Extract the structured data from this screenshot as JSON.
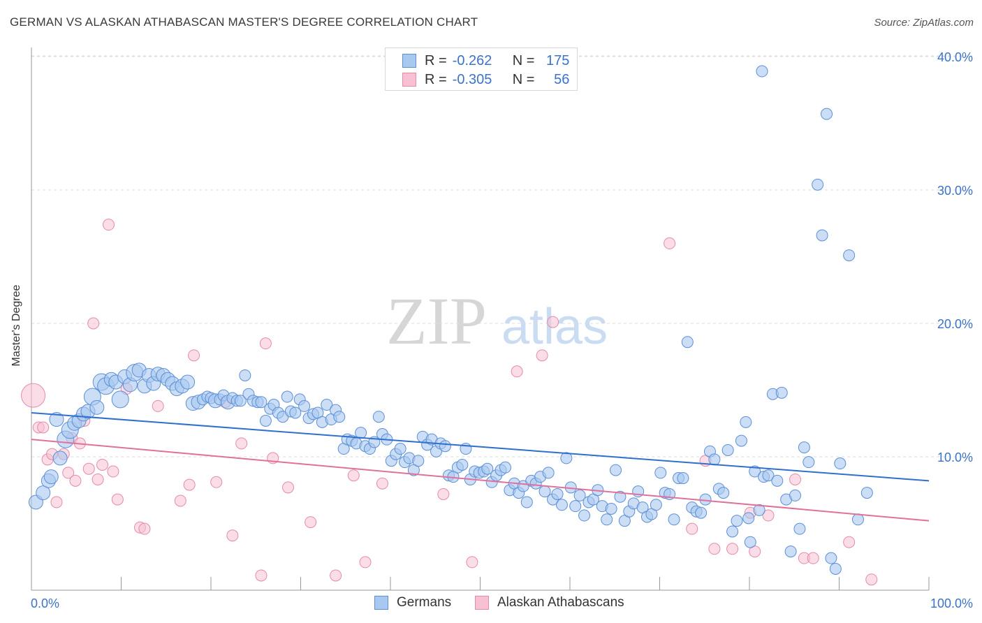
{
  "title": "GERMAN VS ALASKAN ATHABASCAN MASTER'S DEGREE CORRELATION CHART",
  "source": "Source: ZipAtlas.com",
  "watermark": {
    "zip": "ZIP",
    "atlas": "atlas"
  },
  "colors": {
    "german_fill": "#a9c8f0",
    "german_stroke": "#5b8fd6",
    "german_line": "#2f6fcd",
    "alaskan_fill": "#f7c1d3",
    "alaskan_stroke": "#e58aa9",
    "alaskan_line": "#e0719a",
    "tick_label": "#3a73c8",
    "grid": "#dddddd"
  },
  "legend": {
    "rows": [
      {
        "r_label": "R =",
        "r_value": "-0.262",
        "n_label": "N =",
        "n_value": "175"
      },
      {
        "r_label": "R =",
        "r_value": "-0.305",
        "n_label": "N =",
        "n_value": "56"
      }
    ]
  },
  "bottom_legend": {
    "germans": "Germans",
    "alaskans": "Alaskan Athabascans"
  },
  "chart_data": {
    "type": "scatter",
    "title": "GERMAN VS ALASKAN ATHABASCAN MASTER'S DEGREE CORRELATION CHART",
    "xlabel": "",
    "ylabel": "Master's Degree",
    "xlim": [
      0,
      100
    ],
    "ylim": [
      0,
      42
    ],
    "x_tick_labels": [
      "0.0%",
      "100.0%"
    ],
    "y_ticks": [
      10,
      20,
      30,
      40
    ],
    "y_tick_labels": [
      "10.0%",
      "20.0%",
      "30.0%",
      "40.0%"
    ],
    "grid": "horizontal dashed",
    "legend_position": "top-center",
    "series": [
      {
        "name": "Germans",
        "trend": {
          "x0": 0,
          "y0": 13.3,
          "x1": 100,
          "y1": 8.2
        },
        "points": [
          [
            0.5,
            6.6,
            2
          ],
          [
            1.3,
            7.3,
            2
          ],
          [
            1.9,
            8.2,
            2
          ],
          [
            2.2,
            8.5,
            2
          ],
          [
            2.8,
            12.8,
            2
          ],
          [
            3.2,
            9.9,
            2
          ],
          [
            3.8,
            11.3,
            3
          ],
          [
            4.3,
            12.0,
            3
          ],
          [
            4.8,
            12.5,
            2
          ],
          [
            5.3,
            12.7,
            2
          ],
          [
            5.8,
            13.2,
            2
          ],
          [
            6.3,
            13.4,
            2
          ],
          [
            6.8,
            14.5,
            3
          ],
          [
            7.3,
            13.7,
            2
          ],
          [
            7.8,
            15.6,
            3
          ],
          [
            8.3,
            15.3,
            3
          ],
          [
            8.9,
            15.8,
            2
          ],
          [
            9.4,
            15.6,
            2
          ],
          [
            9.9,
            14.3,
            3
          ],
          [
            10.4,
            16.0,
            2
          ],
          [
            11.0,
            15.4,
            2
          ],
          [
            11.5,
            16.3,
            3
          ],
          [
            12.0,
            16.5,
            2
          ],
          [
            12.6,
            15.3,
            2
          ],
          [
            13.1,
            16.1,
            2
          ],
          [
            13.6,
            15.5,
            2
          ],
          [
            14.1,
            16.2,
            2
          ],
          [
            14.7,
            16.1,
            2
          ],
          [
            15.2,
            15.8,
            2
          ],
          [
            15.7,
            15.5,
            2
          ],
          [
            16.2,
            15.1,
            2
          ],
          [
            16.8,
            15.3,
            2
          ],
          [
            17.4,
            15.6,
            2
          ],
          [
            18.0,
            14.0,
            2
          ],
          [
            18.6,
            14.1,
            2
          ],
          [
            19.1,
            14.3,
            1
          ],
          [
            19.6,
            14.5,
            1
          ],
          [
            20.0,
            14.4,
            1
          ],
          [
            20.5,
            14.2,
            2
          ],
          [
            21.0,
            14.3,
            1
          ],
          [
            21.4,
            14.6,
            1
          ],
          [
            21.9,
            14.1,
            2
          ],
          [
            22.4,
            14.4,
            1
          ],
          [
            22.9,
            14.2,
            1
          ],
          [
            23.3,
            14.2,
            1
          ],
          [
            23.8,
            16.1,
            1
          ],
          [
            24.2,
            14.7,
            1
          ],
          [
            24.7,
            14.2,
            1
          ],
          [
            25.2,
            14.1,
            1
          ],
          [
            25.6,
            14.1,
            1
          ],
          [
            26.1,
            12.7,
            1
          ],
          [
            26.6,
            13.6,
            1
          ],
          [
            27.0,
            13.9,
            1
          ],
          [
            27.5,
            13.3,
            1
          ],
          [
            28.0,
            13.0,
            1
          ],
          [
            28.5,
            14.5,
            1
          ],
          [
            28.9,
            13.4,
            1
          ],
          [
            29.4,
            13.3,
            1
          ],
          [
            29.9,
            14.3,
            1
          ],
          [
            30.4,
            13.8,
            1
          ],
          [
            30.9,
            12.9,
            1
          ],
          [
            31.4,
            13.2,
            1
          ],
          [
            31.9,
            13.3,
            1
          ],
          [
            32.4,
            12.6,
            1
          ],
          [
            32.9,
            13.9,
            1
          ],
          [
            33.4,
            12.8,
            1
          ],
          [
            33.9,
            13.5,
            1
          ],
          [
            34.3,
            13.0,
            1
          ],
          [
            34.8,
            10.6,
            1
          ],
          [
            35.2,
            11.3,
            1
          ],
          [
            35.7,
            11.2,
            1
          ],
          [
            36.2,
            11.0,
            1
          ],
          [
            36.7,
            11.8,
            1
          ],
          [
            37.2,
            10.8,
            1
          ],
          [
            37.7,
            10.6,
            1
          ],
          [
            38.2,
            11.1,
            1
          ],
          [
            38.7,
            13.0,
            1
          ],
          [
            39.1,
            11.7,
            1
          ],
          [
            39.6,
            11.3,
            1
          ],
          [
            40.1,
            9.7,
            1
          ],
          [
            40.6,
            10.2,
            1
          ],
          [
            41.1,
            10.6,
            1
          ],
          [
            41.6,
            9.6,
            1
          ],
          [
            42.1,
            9.9,
            1
          ],
          [
            42.6,
            9.0,
            1
          ],
          [
            43.1,
            9.7,
            1
          ],
          [
            43.6,
            11.5,
            1
          ],
          [
            44.1,
            10.9,
            1
          ],
          [
            44.6,
            11.3,
            1
          ],
          [
            45.1,
            10.4,
            1
          ],
          [
            45.6,
            11.0,
            1
          ],
          [
            46.1,
            10.8,
            1
          ],
          [
            46.5,
            8.6,
            1
          ],
          [
            47.0,
            8.5,
            1
          ],
          [
            47.5,
            9.2,
            1
          ],
          [
            48.0,
            9.4,
            1
          ],
          [
            48.4,
            10.6,
            1
          ],
          [
            48.9,
            8.3,
            1
          ],
          [
            49.4,
            8.9,
            1
          ],
          [
            49.9,
            8.8,
            1
          ],
          [
            50.4,
            8.9,
            1
          ],
          [
            50.8,
            9.1,
            1
          ],
          [
            51.3,
            8.1,
            1
          ],
          [
            51.8,
            8.6,
            1
          ],
          [
            52.3,
            9.0,
            1
          ],
          [
            52.8,
            9.2,
            1
          ],
          [
            53.3,
            7.5,
            1
          ],
          [
            53.8,
            8.0,
            1
          ],
          [
            54.3,
            7.3,
            1
          ],
          [
            54.8,
            7.8,
            1
          ],
          [
            55.2,
            6.6,
            1
          ],
          [
            55.7,
            8.2,
            1
          ],
          [
            56.2,
            8.0,
            1
          ],
          [
            56.7,
            8.5,
            1
          ],
          [
            57.2,
            7.4,
            1
          ],
          [
            57.6,
            8.8,
            1
          ],
          [
            58.1,
            6.8,
            1
          ],
          [
            58.6,
            7.2,
            1
          ],
          [
            59.1,
            6.4,
            1
          ],
          [
            59.6,
            9.9,
            1
          ],
          [
            60.1,
            7.7,
            1
          ],
          [
            60.6,
            6.3,
            1
          ],
          [
            61.1,
            7.1,
            1
          ],
          [
            61.6,
            5.6,
            1
          ],
          [
            62.1,
            6.6,
            1
          ],
          [
            62.6,
            6.8,
            1
          ],
          [
            63.1,
            7.5,
            1
          ],
          [
            63.6,
            6.3,
            1
          ],
          [
            64.1,
            5.3,
            1
          ],
          [
            64.6,
            6.1,
            1
          ],
          [
            65.1,
            9.0,
            1
          ],
          [
            65.6,
            7.0,
            1
          ],
          [
            66.1,
            5.2,
            1
          ],
          [
            66.6,
            5.9,
            1
          ],
          [
            67.1,
            6.5,
            1
          ],
          [
            67.6,
            7.4,
            1
          ],
          [
            68.1,
            6.2,
            1
          ],
          [
            68.6,
            5.5,
            1
          ],
          [
            69.1,
            5.7,
            1
          ],
          [
            69.6,
            6.4,
            1
          ],
          [
            70.1,
            8.8,
            1
          ],
          [
            70.6,
            7.3,
            1
          ],
          [
            71.1,
            7.2,
            1
          ],
          [
            71.6,
            5.3,
            1
          ],
          [
            72.1,
            8.4,
            1
          ],
          [
            72.6,
            8.4,
            1
          ],
          [
            73.1,
            18.6,
            1
          ],
          [
            73.6,
            6.2,
            1
          ],
          [
            74.1,
            5.9,
            1
          ],
          [
            74.6,
            5.8,
            1
          ],
          [
            75.1,
            6.8,
            1
          ],
          [
            75.6,
            10.4,
            1
          ],
          [
            76.1,
            9.8,
            1
          ],
          [
            76.6,
            7.6,
            1
          ],
          [
            77.1,
            7.3,
            1
          ],
          [
            77.6,
            10.5,
            1
          ],
          [
            78.1,
            4.4,
            1
          ],
          [
            78.6,
            5.2,
            1
          ],
          [
            79.1,
            11.2,
            1
          ],
          [
            79.6,
            12.6,
            1
          ],
          [
            80.1,
            3.6,
            1
          ],
          [
            80.6,
            8.9,
            1
          ],
          [
            81.1,
            6.0,
            1
          ],
          [
            81.6,
            8.5,
            1
          ],
          [
            82.1,
            8.6,
            1
          ],
          [
            82.6,
            14.7,
            1
          ],
          [
            83.1,
            8.2,
            1
          ],
          [
            83.6,
            14.8,
            1
          ],
          [
            84.1,
            6.8,
            1
          ],
          [
            84.6,
            2.9,
            1
          ],
          [
            85.1,
            7.1,
            1
          ],
          [
            85.6,
            4.6,
            1
          ],
          [
            86.1,
            10.7,
            1
          ],
          [
            86.6,
            9.6,
            1
          ],
          [
            87.6,
            30.4,
            1
          ],
          [
            88.1,
            26.6,
            1
          ],
          [
            88.6,
            35.7,
            1
          ],
          [
            89.1,
            2.4,
            1
          ],
          [
            89.6,
            1.6,
            1
          ],
          [
            90.1,
            9.5,
            1
          ],
          [
            91.1,
            25.1,
            1
          ],
          [
            92.1,
            5.3,
            1
          ],
          [
            93.1,
            7.3,
            1
          ],
          [
            81.4,
            38.9,
            1
          ],
          [
            79.9,
            5.4,
            1
          ]
        ]
      },
      {
        "name": "Alaskan Athabascans",
        "trend": {
          "x0": 0,
          "y0": 11.3,
          "x1": 100,
          "y1": 5.2
        },
        "points": [
          [
            0.2,
            14.6,
            4
          ],
          [
            0.8,
            12.2,
            1
          ],
          [
            1.3,
            12.2,
            1
          ],
          [
            1.8,
            9.8,
            1
          ],
          [
            2.3,
            10.2,
            1
          ],
          [
            2.8,
            6.6,
            1
          ],
          [
            3.6,
            10.2,
            1
          ],
          [
            4.1,
            8.8,
            1
          ],
          [
            4.5,
            11.4,
            1
          ],
          [
            4.9,
            8.2,
            1
          ],
          [
            5.4,
            11.0,
            1
          ],
          [
            5.9,
            12.7,
            1
          ],
          [
            6.4,
            9.1,
            1
          ],
          [
            6.9,
            20.0,
            1
          ],
          [
            7.4,
            8.3,
            1
          ],
          [
            7.9,
            9.4,
            1
          ],
          [
            8.6,
            27.4,
            1
          ],
          [
            9.1,
            8.9,
            1
          ],
          [
            9.6,
            6.8,
            1
          ],
          [
            10.6,
            15.1,
            1
          ],
          [
            12.1,
            4.7,
            1
          ],
          [
            12.6,
            4.6,
            1
          ],
          [
            14.1,
            13.8,
            1
          ],
          [
            16.6,
            6.7,
            1
          ],
          [
            17.6,
            7.9,
            1
          ],
          [
            18.1,
            17.6,
            1
          ],
          [
            20.6,
            8.1,
            1
          ],
          [
            21.6,
            14.1,
            1
          ],
          [
            22.4,
            4.1,
            1
          ],
          [
            23.4,
            11.0,
            1
          ],
          [
            25.6,
            1.1,
            1
          ],
          [
            26.1,
            18.5,
            1
          ],
          [
            26.9,
            9.9,
            1
          ],
          [
            28.6,
            7.7,
            1
          ],
          [
            31.1,
            5.1,
            1
          ],
          [
            33.9,
            1.1,
            1
          ],
          [
            35.9,
            8.6,
            1
          ],
          [
            37.2,
            2.1,
            1
          ],
          [
            39.1,
            8.0,
            1
          ],
          [
            45.9,
            7.2,
            1
          ],
          [
            49.1,
            2.1,
            1
          ],
          [
            54.1,
            16.4,
            1
          ],
          [
            56.9,
            17.6,
            1
          ],
          [
            58.1,
            20.1,
            1
          ],
          [
            71.1,
            26.0,
            1
          ],
          [
            73.6,
            4.6,
            1
          ],
          [
            75.1,
            9.7,
            1
          ],
          [
            76.1,
            3.1,
            1
          ],
          [
            78.1,
            3.1,
            1
          ],
          [
            80.1,
            5.8,
            1
          ],
          [
            80.6,
            2.9,
            1
          ],
          [
            82.1,
            5.6,
            1
          ],
          [
            85.1,
            8.3,
            1
          ],
          [
            86.1,
            2.4,
            1
          ],
          [
            87.1,
            2.4,
            1
          ],
          [
            91.1,
            3.6,
            1
          ],
          [
            93.6,
            0.8,
            1
          ]
        ]
      }
    ]
  }
}
